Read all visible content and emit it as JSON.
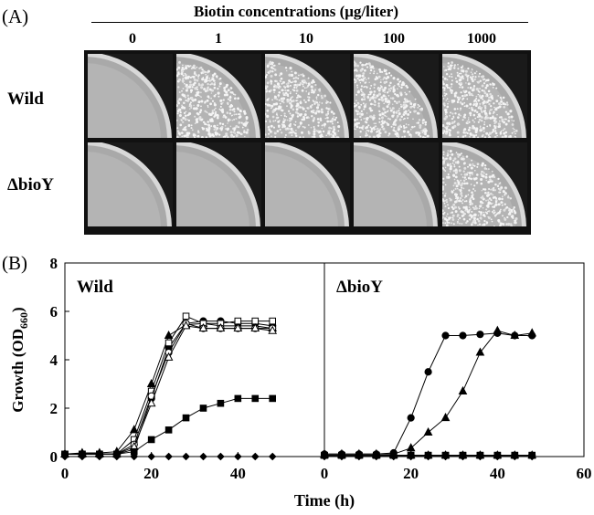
{
  "panel_a": {
    "label": "(A)",
    "header": "Biotin concentrations  (μg/liter)",
    "concentrations": [
      "0",
      "1",
      "10",
      "100",
      "1000"
    ],
    "rows": [
      {
        "label": "Wild",
        "colony_growth": [
          false,
          true,
          true,
          true,
          true
        ]
      },
      {
        "label": "ΔbioY",
        "colony_growth": [
          false,
          false,
          false,
          false,
          true
        ]
      }
    ]
  },
  "chart_data": {
    "type": "line",
    "panel_label": "(B)",
    "ylabel": "Growth (OD660)",
    "ylabel_main": "Growth (OD",
    "ylabel_sub": "660",
    "ylabel_close": ")",
    "xlabel": "Time (h)",
    "ylim": [
      0,
      8
    ],
    "yticks": [
      "0",
      "2",
      "4",
      "6",
      "8"
    ],
    "xticks": [
      "0",
      "20",
      "40",
      "60"
    ],
    "panels": [
      {
        "title": "Wild",
        "xlim": [
          0,
          60
        ],
        "series": [
          {
            "marker": "filled-circle",
            "x": [
              0,
              4,
              8,
              12,
              16,
              20,
              24,
              28,
              32,
              36,
              40,
              44,
              48
            ],
            "y": [
              0.1,
              0.1,
              0.1,
              0.1,
              0.3,
              2.4,
              4.5,
              5.5,
              5.6,
              5.6,
              5.5,
              5.5,
              5.4
            ]
          },
          {
            "marker": "filled-triangle",
            "x": [
              0,
              4,
              8,
              12,
              16,
              20,
              24,
              28,
              32,
              36,
              40,
              44,
              48
            ],
            "y": [
              0.1,
              0.15,
              0.15,
              0.2,
              1.1,
              3.0,
              5.0,
              5.45,
              5.5,
              5.4,
              5.4,
              5.4,
              5.3
            ]
          },
          {
            "marker": "open-square",
            "x": [
              0,
              4,
              8,
              12,
              16,
              20,
              24,
              28,
              32,
              36,
              40,
              44,
              48
            ],
            "y": [
              0.1,
              0.1,
              0.1,
              0.1,
              0.7,
              2.7,
              4.7,
              5.8,
              5.5,
              5.5,
              5.6,
              5.6,
              5.6
            ]
          },
          {
            "marker": "open-circle",
            "x": [
              0,
              4,
              8,
              12,
              16,
              20,
              24,
              28,
              32,
              36,
              40,
              44,
              48
            ],
            "y": [
              0.1,
              0.1,
              0.1,
              0.1,
              0.5,
              2.5,
              4.3,
              5.5,
              5.3,
              5.3,
              5.3,
              5.3,
              5.3
            ]
          },
          {
            "marker": "open-triangle",
            "x": [
              0,
              4,
              8,
              12,
              16,
              20,
              24,
              28,
              32,
              36,
              40,
              44,
              48
            ],
            "y": [
              0.1,
              0.1,
              0.1,
              0.1,
              0.4,
              2.2,
              4.1,
              5.4,
              5.3,
              5.3,
              5.3,
              5.3,
              5.2
            ]
          },
          {
            "marker": "filled-square",
            "x": [
              0,
              4,
              8,
              12,
              16,
              20,
              24,
              28,
              32,
              36,
              40,
              44,
              48
            ],
            "y": [
              0.1,
              0.1,
              0.1,
              0.1,
              0.2,
              0.7,
              1.1,
              1.6,
              2.0,
              2.2,
              2.4,
              2.4,
              2.4
            ]
          },
          {
            "marker": "filled-diamond",
            "x": [
              0,
              4,
              8,
              12,
              16,
              20,
              24,
              28,
              32,
              36,
              40,
              44,
              48
            ],
            "y": [
              0,
              0,
              0,
              0,
              0,
              0,
              0,
              0,
              0,
              0,
              0,
              0,
              0
            ]
          }
        ]
      },
      {
        "title": "ΔbioY",
        "xlim": [
          0,
          60
        ],
        "series": [
          {
            "marker": "filled-circle",
            "x": [
              0,
              4,
              8,
              12,
              16,
              20,
              24,
              28,
              32,
              36,
              40,
              44,
              48
            ],
            "y": [
              0.1,
              0.1,
              0.1,
              0.1,
              0.15,
              1.6,
              3.5,
              5.0,
              5.0,
              5.05,
              5.1,
              5.0,
              5.0
            ]
          },
          {
            "marker": "filled-triangle",
            "x": [
              0,
              4,
              8,
              12,
              16,
              20,
              24,
              28,
              32,
              36,
              40,
              44,
              48
            ],
            "y": [
              0.1,
              0.1,
              0.1,
              0.1,
              0.1,
              0.35,
              1.0,
              1.6,
              2.7,
              4.3,
              5.2,
              5.0,
              5.1
            ]
          },
          {
            "marker": "open-square",
            "x": [
              0,
              4,
              8,
              12,
              16,
              20,
              24,
              28,
              32,
              36,
              40,
              44,
              48
            ],
            "y": [
              0.05,
              0.05,
              0.05,
              0.05,
              0.05,
              0.05,
              0.05,
              0.05,
              0.05,
              0.05,
              0.05,
              0.05,
              0.05
            ]
          },
          {
            "marker": "open-circle",
            "x": [
              0,
              4,
              8,
              12,
              16,
              20,
              24,
              28,
              32,
              36,
              40,
              44,
              48
            ],
            "y": [
              0.05,
              0.05,
              0.05,
              0.05,
              0.05,
              0.05,
              0.05,
              0.05,
              0.05,
              0.05,
              0.05,
              0.05,
              0.05
            ]
          },
          {
            "marker": "open-triangle",
            "x": [
              0,
              4,
              8,
              12,
              16,
              20,
              24,
              28,
              32,
              36,
              40,
              44,
              48
            ],
            "y": [
              0.05,
              0.05,
              0.05,
              0.05,
              0.05,
              0.05,
              0.05,
              0.05,
              0.05,
              0.05,
              0.05,
              0.05,
              0.05
            ]
          },
          {
            "marker": "filled-square",
            "x": [
              0,
              4,
              8,
              12,
              16,
              20,
              24,
              28,
              32,
              36,
              40,
              44,
              48
            ],
            "y": [
              0.05,
              0.05,
              0.05,
              0.05,
              0.05,
              0.05,
              0.05,
              0.05,
              0.05,
              0.05,
              0.05,
              0.05,
              0.05
            ]
          },
          {
            "marker": "filled-diamond",
            "x": [
              0,
              4,
              8,
              12,
              16,
              20,
              24,
              28,
              32,
              36,
              40,
              44,
              48
            ],
            "y": [
              0,
              0,
              0,
              0,
              0,
              0,
              0,
              0,
              0,
              0,
              0,
              0,
              0
            ]
          }
        ]
      }
    ]
  }
}
